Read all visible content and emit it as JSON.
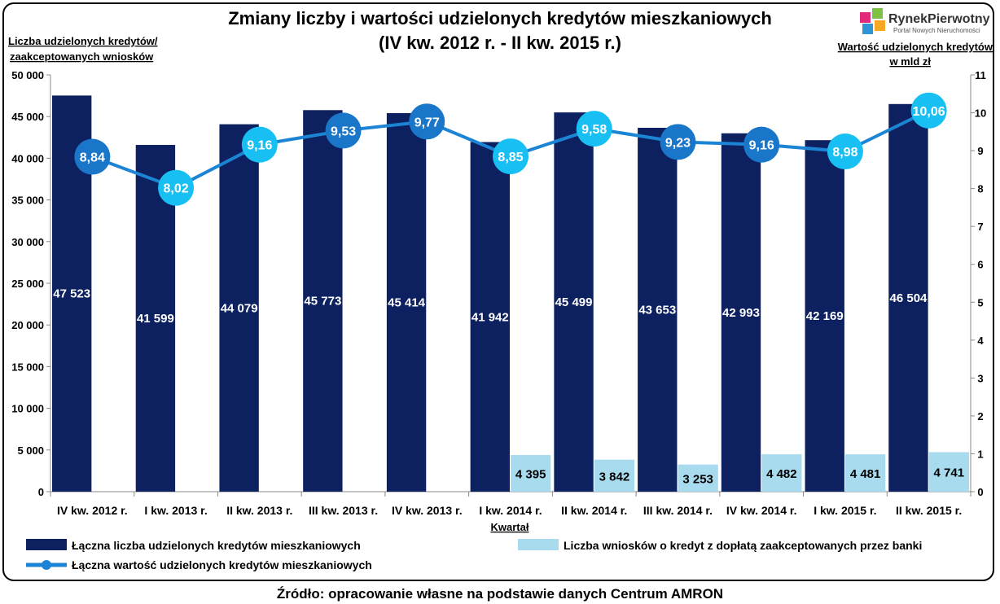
{
  "chart_data": {
    "type": "bar",
    "title": "Zmiany liczby i wartości udzielonych kredytów mieszkaniowych",
    "subtitle": "(IV kw. 2012 r. - II kw. 2015 r.)",
    "y_left_label_line1": "Liczba udzielonych kredytów/",
    "y_left_label_line2": "zaakceptowanych wniosków",
    "y_right_label_line1": "Wartość udzielonych kredytów",
    "y_right_label_line2": "w mld zł",
    "xlabel": "Kwartał",
    "ylim_left": [
      0,
      50000
    ],
    "ylim_right": [
      0,
      11
    ],
    "y_left_ticks": [
      "0",
      "5 000",
      "10 000",
      "15 000",
      "20 000",
      "25 000",
      "30 000",
      "35 000",
      "40 000",
      "45 000",
      "50 000"
    ],
    "y_right_ticks": [
      "0",
      "1",
      "2",
      "3",
      "4",
      "5",
      "6",
      "7",
      "8",
      "9",
      "10",
      "11"
    ],
    "categories": [
      "IV kw. 2012 r.",
      "I kw. 2013 r.",
      "II kw. 2013 r.",
      "III kw. 2013 r.",
      "IV kw. 2013 r.",
      "I kw. 2014 r.",
      "II kw. 2014 r.",
      "III kw. 2014 r.",
      "IV kw. 2014 r.",
      "I kw. 2015 r.",
      "II kw. 2015 r."
    ],
    "series": [
      {
        "name": "Łączna liczba udzielonych kredytów mieszkaniowych",
        "kind": "bar",
        "axis": "left",
        "color": "#0d2160",
        "values": [
          47523,
          41599,
          44079,
          45773,
          45414,
          41942,
          45499,
          43653,
          42993,
          42169,
          46504
        ],
        "labels": [
          "47 523",
          "41 599",
          "44 079",
          "45 773",
          "45 414",
          "41 942",
          "45 499",
          "43 653",
          "42 993",
          "42 169",
          "46 504"
        ]
      },
      {
        "name": "Liczba wniosków o kredyt z dopłatą zaakceptowanych przez banki",
        "kind": "bar",
        "axis": "left",
        "color": "#a9dbef",
        "values": [
          null,
          null,
          null,
          null,
          null,
          4395,
          3842,
          3253,
          4482,
          4481,
          4741
        ],
        "labels": [
          "",
          "",
          "",
          "",
          "",
          "4 395",
          "3 842",
          "3 253",
          "4 482",
          "4 481",
          "4 741"
        ]
      },
      {
        "name": "Łączna wartość udzielonych kredytów mieszkaniowych",
        "kind": "line",
        "axis": "right",
        "color": "#1c84d4",
        "values": [
          8.84,
          8.02,
          9.16,
          9.53,
          9.77,
          8.85,
          9.58,
          9.23,
          9.16,
          8.98,
          10.06
        ],
        "labels": [
          "8,84",
          "8,02",
          "9,16",
          "9,53",
          "9,77",
          "8,85",
          "9,58",
          "9,23",
          "9,16",
          "8,98",
          "10,06"
        ],
        "marker_colors": [
          "#1976c9",
          "#18bff2",
          "#18bff2",
          "#1976c9",
          "#1976c9",
          "#18bff2",
          "#18bff2",
          "#1976c9",
          "#1976c9",
          "#18bff2",
          "#18bff2"
        ]
      }
    ],
    "grid": false,
    "legend": "bottom"
  },
  "source": "Źródło: opracowanie własne na podstawie danych Centrum AMRON",
  "logo": {
    "name": "RynekPierwotny",
    "tagline": "Portal Nowych Nieruchomości",
    "colors": [
      "#e2287a",
      "#7dc242",
      "#2f94d6",
      "#f6a723"
    ]
  }
}
